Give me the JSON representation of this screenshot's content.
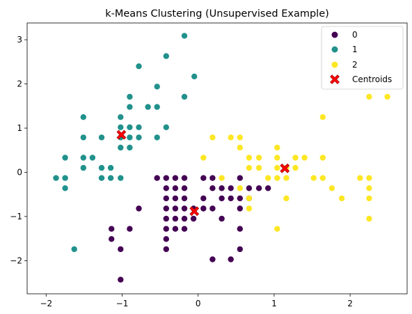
{
  "chart_data": {
    "type": "scatter",
    "title": "k-Means Clustering (Unsupervised Example)",
    "xlabel": "",
    "ylabel": "",
    "xlim": [
      -2.25,
      2.75
    ],
    "ylim": [
      -2.75,
      3.38
    ],
    "x_ticks": [
      -2,
      -1,
      0,
      1,
      2
    ],
    "x_tick_labels": [
      "−2",
      "−1",
      "0",
      "1",
      "2"
    ],
    "y_ticks": [
      -2,
      -1,
      0,
      1,
      2,
      3
    ],
    "y_tick_labels": [
      "−2",
      "−1",
      "0",
      "1",
      "2",
      "3"
    ],
    "grid": false,
    "legend_position": "top-right",
    "colors": {
      "0": "#440154",
      "1": "#21918c",
      "2": "#fde725",
      "centroid": "#ff0000",
      "centroid_edge": "#8b0000"
    },
    "series": [
      {
        "name": "0",
        "color": "#440154",
        "points": [
          [
            -1.02,
            -2.43
          ],
          [
            -1.14,
            -1.28
          ],
          [
            -1.14,
            -1.51
          ],
          [
            -1.02,
            -1.74
          ],
          [
            -0.9,
            -1.28
          ],
          [
            -0.78,
            -0.82
          ],
          [
            -0.54,
            -0.13
          ],
          [
            -0.42,
            -0.13
          ],
          [
            -0.42,
            -0.36
          ],
          [
            -0.42,
            -0.59
          ],
          [
            -0.42,
            -0.82
          ],
          [
            -0.42,
            -1.05
          ],
          [
            -0.42,
            -1.28
          ],
          [
            -0.42,
            -1.51
          ],
          [
            -0.42,
            -1.74
          ],
          [
            -0.3,
            -0.13
          ],
          [
            -0.3,
            -0.36
          ],
          [
            -0.3,
            -0.59
          ],
          [
            -0.3,
            -0.82
          ],
          [
            -0.3,
            -1.05
          ],
          [
            -0.3,
            -1.28
          ],
          [
            -0.18,
            -0.13
          ],
          [
            -0.18,
            -0.36
          ],
          [
            -0.18,
            -0.59
          ],
          [
            -0.18,
            -0.82
          ],
          [
            -0.18,
            -1.05
          ],
          [
            -0.18,
            -1.28
          ],
          [
            -0.06,
            -0.82
          ],
          [
            -0.06,
            -1.05
          ],
          [
            0.07,
            -0.13
          ],
          [
            0.07,
            -0.82
          ],
          [
            0.07,
            -0.59
          ],
          [
            0.19,
            -0.13
          ],
          [
            0.19,
            -0.36
          ],
          [
            0.19,
            -0.82
          ],
          [
            0.19,
            -1.97
          ],
          [
            0.31,
            -0.36
          ],
          [
            0.31,
            -0.59
          ],
          [
            0.31,
            -1.05
          ],
          [
            0.43,
            -0.36
          ],
          [
            0.43,
            -0.59
          ],
          [
            0.43,
            -1.97
          ],
          [
            0.55,
            -0.13
          ],
          [
            0.55,
            -0.59
          ],
          [
            0.55,
            -0.82
          ],
          [
            0.55,
            -1.28
          ],
          [
            0.67,
            -0.36
          ],
          [
            0.67,
            -0.59
          ],
          [
            0.8,
            -0.36
          ],
          [
            0.92,
            -0.36
          ],
          [
            0.55,
            -1.74
          ]
        ]
      },
      {
        "name": "1",
        "color": "#21918c",
        "points": [
          [
            -1.87,
            -0.13
          ],
          [
            -1.75,
            0.33
          ],
          [
            -1.75,
            -0.13
          ],
          [
            -1.75,
            -0.36
          ],
          [
            -1.63,
            -1.74
          ],
          [
            -1.51,
            0.1
          ],
          [
            -1.51,
            0.33
          ],
          [
            -1.51,
            0.79
          ],
          [
            -1.51,
            1.25
          ],
          [
            -1.39,
            0.33
          ],
          [
            -1.27,
            0.1
          ],
          [
            -1.27,
            -0.13
          ],
          [
            -1.27,
            0.79
          ],
          [
            -1.15,
            0.1
          ],
          [
            -1.15,
            -0.13
          ],
          [
            -1.02,
            0.56
          ],
          [
            -1.02,
            0.79
          ],
          [
            -1.02,
            1.02
          ],
          [
            -1.02,
            1.25
          ],
          [
            -1.02,
            -0.13
          ],
          [
            -0.9,
            0.56
          ],
          [
            -0.9,
            0.79
          ],
          [
            -0.9,
            1.02
          ],
          [
            -0.9,
            1.48
          ],
          [
            -0.9,
            1.71
          ],
          [
            -0.78,
            0.79
          ],
          [
            -0.78,
            1.02
          ],
          [
            -0.78,
            2.4
          ],
          [
            -0.66,
            1.48
          ],
          [
            -0.54,
            0.79
          ],
          [
            -0.54,
            1.48
          ],
          [
            -0.54,
            1.94
          ],
          [
            -0.42,
            1.02
          ],
          [
            -0.42,
            2.63
          ],
          [
            -0.18,
            1.71
          ],
          [
            -0.18,
            3.09
          ],
          [
            -0.05,
            2.17
          ]
        ]
      },
      {
        "name": "2",
        "color": "#fde725",
        "points": [
          [
            0.07,
            0.33
          ],
          [
            0.19,
            0.79
          ],
          [
            0.31,
            -0.13
          ],
          [
            0.43,
            0.79
          ],
          [
            0.55,
            0.79
          ],
          [
            0.55,
            0.56
          ],
          [
            0.55,
            -0.36
          ],
          [
            0.67,
            0.33
          ],
          [
            0.67,
            0.1
          ],
          [
            0.67,
            -0.59
          ],
          [
            0.67,
            -0.82
          ],
          [
            0.8,
            0.33
          ],
          [
            0.8,
            0.1
          ],
          [
            0.92,
            -0.13
          ],
          [
            1.04,
            0.56
          ],
          [
            1.04,
            0.33
          ],
          [
            1.04,
            0.1
          ],
          [
            1.04,
            -0.13
          ],
          [
            1.04,
            -1.28
          ],
          [
            1.16,
            0.1
          ],
          [
            1.16,
            -0.13
          ],
          [
            1.16,
            -0.59
          ],
          [
            1.28,
            0.33
          ],
          [
            1.28,
            0.1
          ],
          [
            1.4,
            0.33
          ],
          [
            1.52,
            -0.13
          ],
          [
            1.64,
            1.25
          ],
          [
            1.64,
            0.33
          ],
          [
            1.64,
            -0.13
          ],
          [
            1.76,
            -0.36
          ],
          [
            1.89,
            -0.59
          ],
          [
            2.13,
            -0.13
          ],
          [
            2.25,
            1.71
          ],
          [
            2.25,
            -0.13
          ],
          [
            2.25,
            -0.36
          ],
          [
            2.25,
            -0.59
          ],
          [
            2.25,
            -1.05
          ],
          [
            2.49,
            1.71
          ]
        ]
      }
    ],
    "centroids": {
      "name": "Centroids",
      "points": [
        [
          -1.01,
          0.85
        ],
        [
          -0.05,
          -0.88
        ],
        [
          1.14,
          0.09
        ]
      ]
    }
  }
}
